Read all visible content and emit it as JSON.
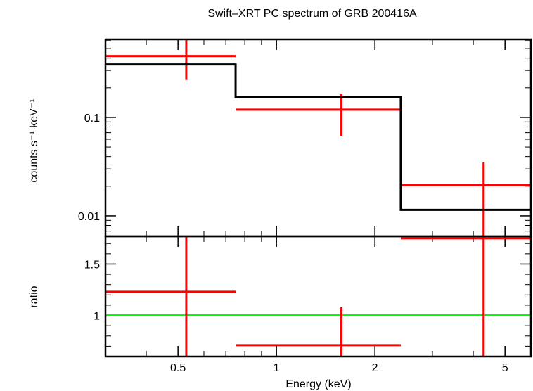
{
  "chart_data": {
    "type": "line",
    "title": "Swift–XRT PC spectrum of GRB 200416A",
    "xlabel": "Energy (keV)",
    "x_scale": "log",
    "xlim": [
      0.3,
      6.0
    ],
    "x_ticks": [
      {
        "value": 0.5,
        "label": "0.5"
      },
      {
        "value": 1,
        "label": "1"
      },
      {
        "value": 2,
        "label": "2"
      },
      {
        "value": 5,
        "label": "5"
      }
    ],
    "panels": [
      {
        "id": "spectrum",
        "ylabel": "counts s⁻¹ keV⁻¹",
        "y_scale": "log",
        "ylim": [
          0.0062,
          0.62
        ],
        "y_ticks": [
          {
            "value": 0.01,
            "label": "0.01"
          },
          {
            "value": 0.1,
            "label": "0.1"
          }
        ],
        "series": [
          {
            "kind": "errorbars",
            "color": "#ff0000",
            "points": [
              {
                "x": 0.53,
                "xlo": 0.3,
                "xhi": 0.75,
                "y": 0.42,
                "ylo": 0.24,
                "yhi": 0.62
              },
              {
                "x": 1.58,
                "xlo": 0.75,
                "xhi": 2.4,
                "y": 0.12,
                "ylo": 0.065,
                "yhi": 0.175
              },
              {
                "x": 4.3,
                "xlo": 2.4,
                "xhi": 6.0,
                "y": 0.0205,
                "ylo": 0.0062,
                "yhi": 0.035
              }
            ]
          },
          {
            "kind": "step",
            "color": "#000000",
            "bins": [
              {
                "xlo": 0.3,
                "xhi": 0.75,
                "y": 0.345
              },
              {
                "xlo": 0.75,
                "xhi": 2.4,
                "y": 0.16
              },
              {
                "xlo": 2.4,
                "xhi": 6.0,
                "y": 0.0115
              }
            ]
          }
        ]
      },
      {
        "id": "ratio",
        "ylabel": "ratio",
        "y_scale": "linear",
        "ylim": [
          0.6,
          1.77
        ],
        "y_ticks": [
          {
            "value": 1,
            "label": "1"
          },
          {
            "value": 1.5,
            "label": "1.5"
          }
        ],
        "reference_line": {
          "y": 1,
          "color": "#00ff00"
        },
        "series": [
          {
            "kind": "errorbars",
            "color": "#ff0000",
            "points": [
              {
                "x": 0.53,
                "xlo": 0.3,
                "xhi": 0.75,
                "y": 1.23,
                "ylo": 0.6,
                "yhi": 1.77
              },
              {
                "x": 1.58,
                "xlo": 0.75,
                "xhi": 2.4,
                "y": 0.71,
                "ylo": 0.6,
                "yhi": 1.08
              },
              {
                "x": 4.3,
                "xlo": 2.4,
                "xhi": 6.0,
                "y": 1.75,
                "ylo": 0.6,
                "yhi": 1.77
              }
            ]
          }
        ]
      }
    ]
  }
}
